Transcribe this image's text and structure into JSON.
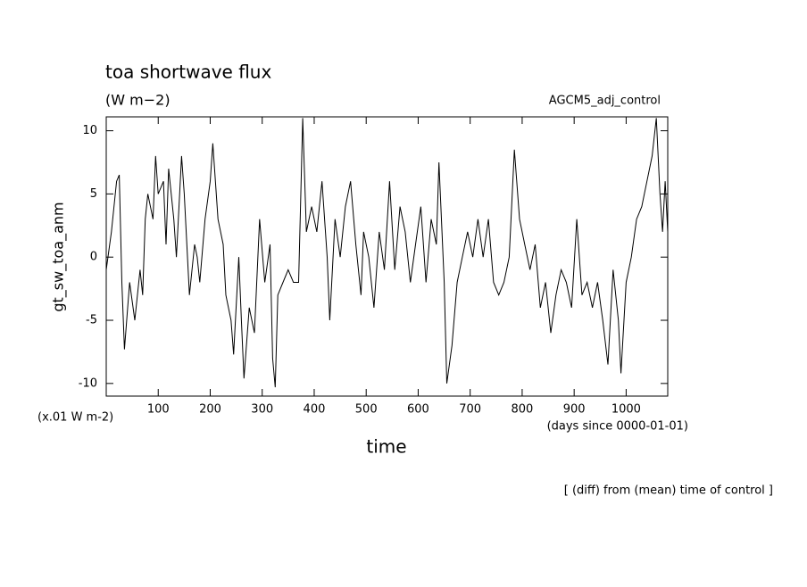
{
  "chart_data": {
    "type": "line",
    "title": "toa shortwave flux",
    "subtitle": "(W m−2)",
    "annotation_right": "AGCM5_adj_control",
    "ylabel": "gt_sw_toa_anm",
    "yunit": "(x.01 W m-2)",
    "xunit": "(days since 0000-01-01)",
    "xlabel": "time",
    "footnote": "[ (diff) from (mean) time of control ]",
    "xlim": [
      0,
      1080
    ],
    "ylim": [
      -11,
      11.1
    ],
    "xticks": [
      100,
      200,
      300,
      400,
      500,
      600,
      700,
      800,
      900,
      1000
    ],
    "yticks": [
      -10,
      -5,
      0,
      5,
      10
    ],
    "series": [
      {
        "color": "#000000",
        "x": [
          0,
          10,
          20,
          25,
          30,
          35,
          45,
          55,
          65,
          70,
          75,
          80,
          90,
          95,
          100,
          110,
          115,
          120,
          130,
          135,
          145,
          150,
          160,
          170,
          175,
          180,
          190,
          200,
          205,
          215,
          225,
          230,
          240,
          245,
          255,
          260,
          265,
          275,
          285,
          295,
          305,
          315,
          320,
          325,
          330,
          340,
          350,
          360,
          370,
          378,
          385,
          395,
          405,
          415,
          425,
          430,
          440,
          450,
          460,
          470,
          480,
          490,
          495,
          505,
          515,
          525,
          535,
          545,
          555,
          565,
          575,
          585,
          595,
          605,
          615,
          625,
          635,
          640,
          650,
          655,
          665,
          675,
          685,
          695,
          705,
          715,
          725,
          735,
          745,
          755,
          765,
          775,
          785,
          795,
          805,
          815,
          825,
          835,
          845,
          855,
          865,
          875,
          885,
          895,
          905,
          915,
          925,
          935,
          945,
          955,
          965,
          975,
          985,
          990,
          1000,
          1010,
          1020,
          1030,
          1040,
          1050,
          1058,
          1065,
          1070,
          1075,
          1080
        ],
        "values": [
          -1,
          2,
          6,
          6.5,
          -2,
          -7.3,
          -2,
          -5,
          -1,
          -3,
          3,
          5,
          3,
          8,
          5,
          6,
          1,
          7,
          3,
          0,
          8,
          5,
          -3,
          1,
          0,
          -2,
          3,
          6,
          9,
          3,
          1,
          -3,
          -5,
          -7.7,
          0,
          -5,
          -9.6,
          -4,
          -6,
          3,
          -2,
          1,
          -8,
          -10.3,
          -3,
          -2,
          -1,
          -2,
          -2,
          11,
          2,
          4,
          2,
          6,
          0,
          -5,
          3,
          0,
          4,
          6,
          1,
          -3,
          2,
          0,
          -4,
          2,
          -1,
          6,
          -1,
          4,
          2,
          -2,
          1,
          4,
          -2,
          3,
          1,
          7.5,
          -2,
          -10,
          -7,
          -2,
          0,
          2,
          0,
          3,
          0,
          3,
          -2,
          -3,
          -2,
          0,
          8.5,
          3,
          1,
          -1,
          1,
          -4,
          -2,
          -6,
          -3,
          -1,
          -2,
          -4,
          3,
          -3,
          -2,
          -4,
          -2,
          -5,
          -8.5,
          -1,
          -5,
          -9.2,
          -2,
          0,
          3,
          4,
          6,
          8,
          11,
          5,
          2,
          6,
          2
        ]
      }
    ]
  }
}
